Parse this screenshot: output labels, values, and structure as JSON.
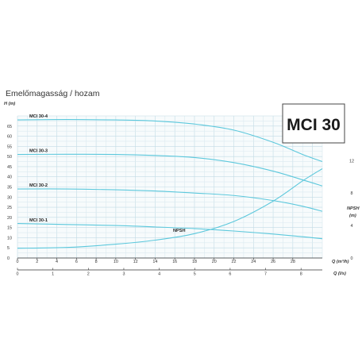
{
  "page": {
    "title": "Emelőmagasság / hozam",
    "model": "MCI 30"
  },
  "colors": {
    "grid_minor": "#dbeaf0",
    "grid_major": "#c2dbe5",
    "curve": "#5cc8dc",
    "axis": "#333333",
    "plot_background": "#f7fbfc"
  },
  "chart_data": {
    "type": "line",
    "x_axis": {
      "label": "Q (m³/h)",
      "range": [
        0,
        31
      ],
      "ticks": [
        0,
        2,
        4,
        6,
        8,
        10,
        12,
        14,
        16,
        18,
        20,
        22,
        24,
        26,
        28
      ]
    },
    "x2_axis": {
      "label": "Q (l/s)",
      "range": [
        0,
        8.6
      ],
      "ticks": [
        0,
        1,
        2,
        3,
        4,
        5,
        6,
        7,
        8
      ]
    },
    "y_axis": {
      "label": "H (m)",
      "range": [
        0,
        70
      ],
      "ticks": [
        0,
        5,
        10,
        15,
        20,
        25,
        30,
        35,
        40,
        45,
        50,
        55,
        60,
        65
      ]
    },
    "y2_axis": {
      "label_top": "NPSH",
      "label_bottom": "(m)",
      "range": [
        0,
        17.5
      ],
      "ticks": [
        0,
        4,
        8,
        12
      ]
    },
    "grid": true,
    "series": [
      {
        "name": "MCI 30-4",
        "axis": "left",
        "x": [
          0,
          5,
          10,
          14,
          18,
          22,
          26,
          29,
          31
        ],
        "y": [
          68,
          68.2,
          68,
          67.5,
          66,
          63,
          57,
          51,
          47.5
        ]
      },
      {
        "name": "MCI 30-3",
        "axis": "left",
        "x": [
          0,
          5,
          10,
          14,
          18,
          22,
          26,
          29,
          31
        ],
        "y": [
          51,
          51.1,
          51,
          50.5,
          49.5,
          47,
          42.8,
          38.5,
          35.5
        ]
      },
      {
        "name": "MCI 30-2",
        "axis": "left",
        "x": [
          0,
          5,
          10,
          14,
          18,
          22,
          26,
          29,
          31
        ],
        "y": [
          34,
          34,
          33.6,
          33,
          32,
          30.8,
          28.3,
          25.5,
          23
        ]
      },
      {
        "name": "MCI 30-1",
        "axis": "left",
        "x": [
          0,
          5,
          10,
          14,
          18,
          22,
          26,
          29,
          31
        ],
        "y": [
          17,
          16.5,
          16,
          15.3,
          14.5,
          13.3,
          11.8,
          10.5,
          9.5
        ]
      },
      {
        "name": "NPSH",
        "axis": "right",
        "x": [
          0,
          5,
          10,
          14,
          18,
          22,
          26,
          29,
          31
        ],
        "y": [
          1.2,
          1.3,
          1.7,
          2.2,
          3,
          4.5,
          7,
          9.5,
          11
        ]
      }
    ]
  }
}
